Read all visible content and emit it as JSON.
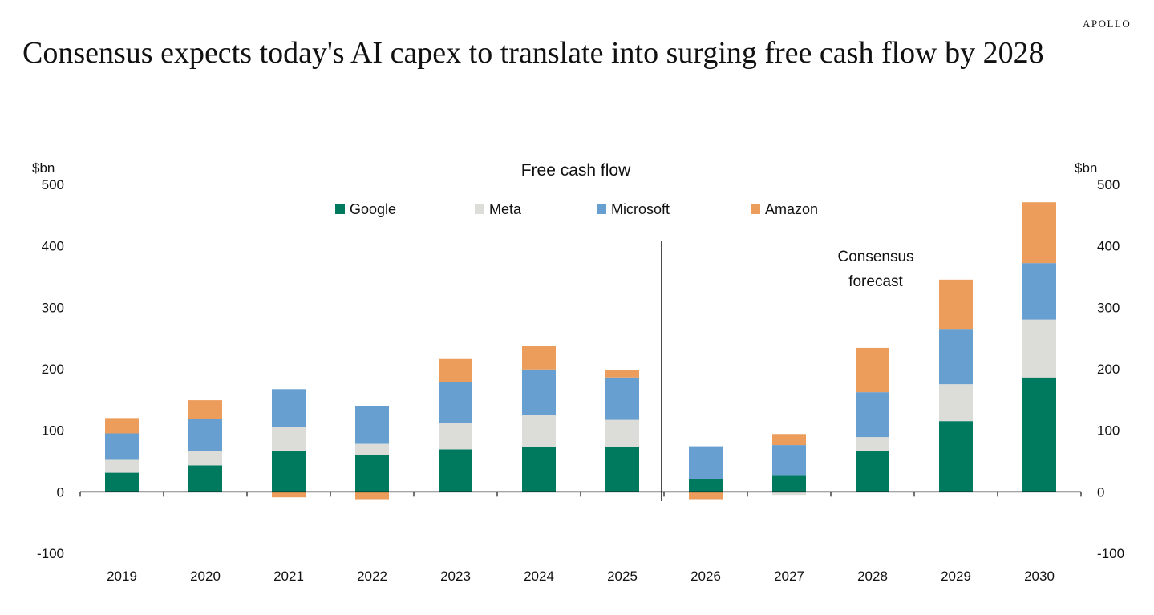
{
  "header": {
    "brand": "APOLLO",
    "title": "Consensus expects today's AI capex to translate into surging free cash flow by 2028"
  },
  "colors": {
    "Google": "#007a5e",
    "Meta": "#dcddd8",
    "Microsoft": "#689fd1",
    "Amazon": "#ec9d5c"
  },
  "chart_data": {
    "type": "bar",
    "stacked": true,
    "title": "Free cash flow",
    "ylabel_left": "$bn",
    "ylabel_right": "$bn",
    "ylim": [
      -100,
      500
    ],
    "yticks": [
      "-100",
      "0",
      "100",
      "200",
      "300",
      "400",
      "500"
    ],
    "categories": [
      "2019",
      "2020",
      "2021",
      "2022",
      "2023",
      "2024",
      "2025",
      "2026",
      "2027",
      "2028",
      "2029",
      "2030"
    ],
    "series": [
      {
        "name": "Google",
        "values": [
          31,
          43,
          67,
          60,
          69,
          73,
          73,
          21,
          26,
          66,
          115,
          186
        ]
      },
      {
        "name": "Meta",
        "values": [
          21,
          23,
          39,
          18,
          43,
          52,
          44,
          0,
          -5,
          23,
          60,
          94
        ]
      },
      {
        "name": "Microsoft",
        "values": [
          43,
          52,
          61,
          62,
          67,
          74,
          69,
          53,
          50,
          73,
          90,
          92
        ]
      },
      {
        "name": "Amazon",
        "values": [
          25,
          31,
          -9,
          -12,
          37,
          38,
          12,
          -12,
          18,
          72,
          80,
          99
        ]
      }
    ],
    "forecast_annotation": "Consensus\nforecast",
    "legend_position": "top-center"
  }
}
